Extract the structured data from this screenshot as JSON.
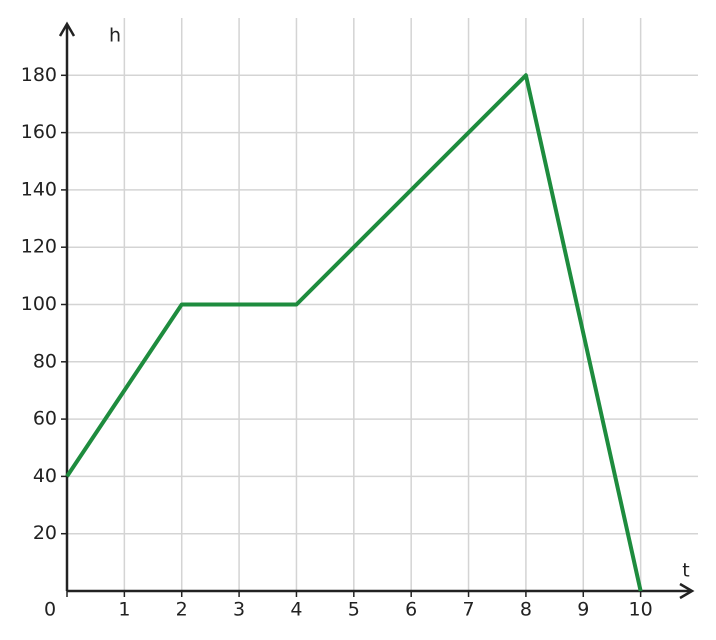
{
  "chart_data": {
    "type": "line",
    "x_label": "t",
    "y_label": "h",
    "x": [
      0,
      2,
      4,
      8,
      10
    ],
    "series": [
      {
        "name": "h",
        "color": "#1e8c3e",
        "values": [
          40,
          100,
          100,
          180,
          0
        ]
      }
    ],
    "xlim": [
      0,
      11
    ],
    "xticks": [
      0,
      1,
      2,
      3,
      4,
      5,
      6,
      7,
      8,
      9,
      10
    ],
    "ylim": [
      0,
      200
    ],
    "yticks": [
      20,
      40,
      60,
      80,
      100,
      120,
      140,
      160,
      180
    ],
    "grid": true,
    "legend": false
  }
}
